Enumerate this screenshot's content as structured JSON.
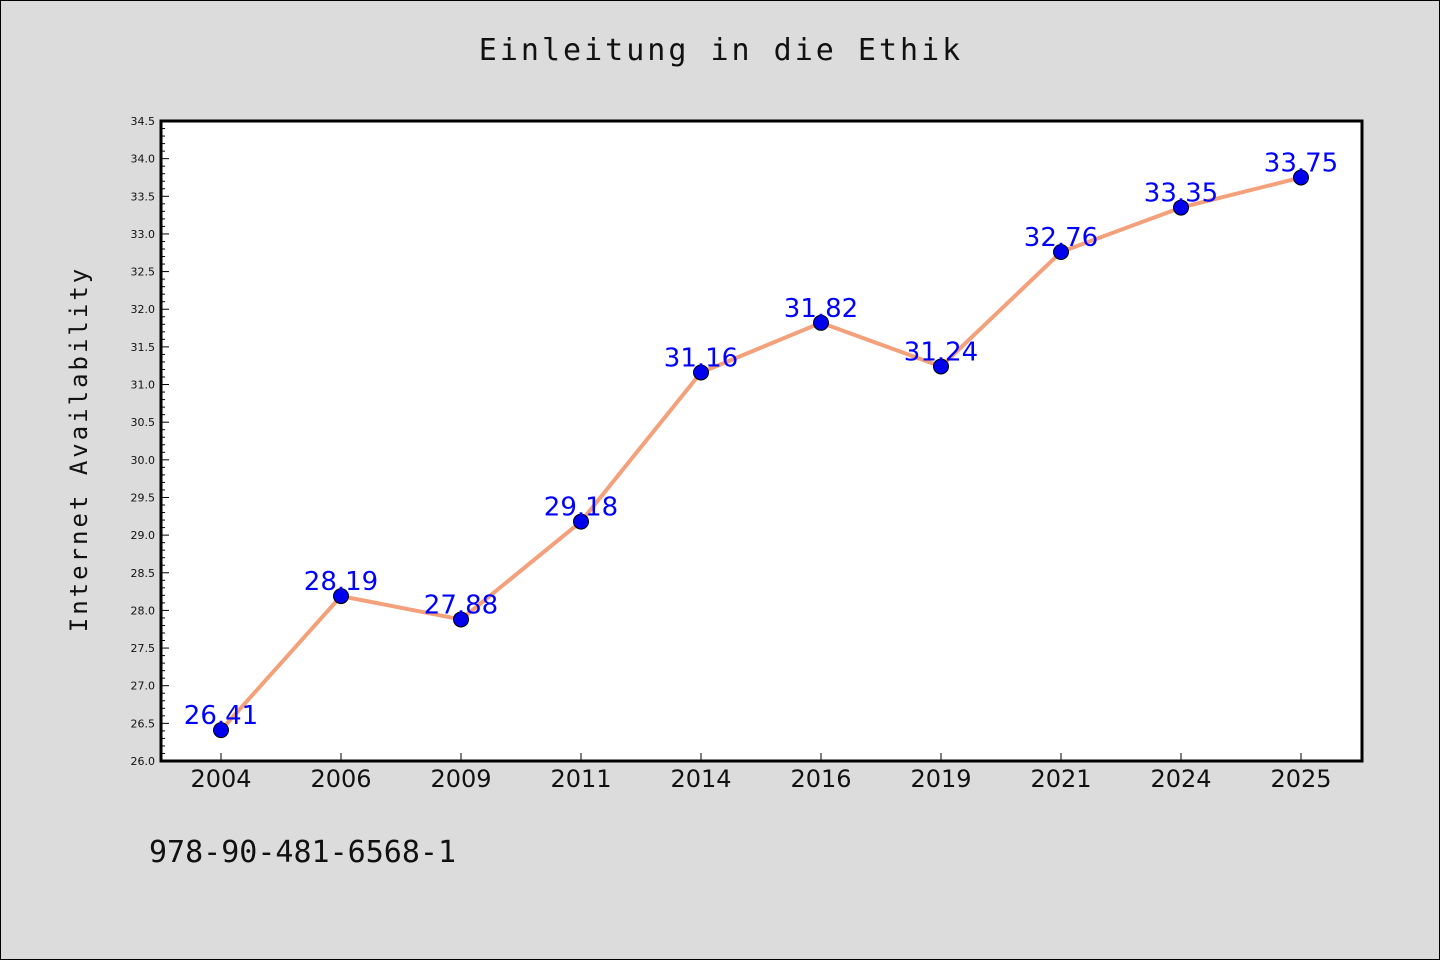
{
  "chart_data": {
    "type": "line",
    "title": "Einleitung in die Ethik",
    "ylabel": "Internet Availability",
    "xlabel": "",
    "categories": [
      "2004",
      "2006",
      "2009",
      "2011",
      "2014",
      "2016",
      "2019",
      "2021",
      "2024",
      "2025"
    ],
    "series": [
      {
        "values": [
          26.41,
          28.19,
          27.88,
          29.18,
          31.16,
          31.82,
          31.24,
          32.76,
          33.35,
          33.75
        ]
      }
    ],
    "data_labels": [
      "26.41",
      "28.19",
      "27.88",
      "29.18",
      "31.16",
      "31.82",
      "31.24",
      "32.76",
      "33.35",
      "33.75"
    ],
    "ylim": [
      26.0,
      34.5
    ],
    "yticks": [
      "26.0",
      "26.5",
      "27.0",
      "27.5",
      "28.0",
      "28.5",
      "29.0",
      "29.5",
      "30.0",
      "30.5",
      "31.0",
      "31.5",
      "32.0",
      "32.5",
      "33.0",
      "33.5",
      "34.0",
      "34.5"
    ],
    "grid": false,
    "legend": "none",
    "line_color": "#f4a07a",
    "marker_color": "#0000ee",
    "label_color": "#0000ff",
    "background_color": "#dcdcdc",
    "plot_background": "#ffffff"
  },
  "footer": {
    "isbn": "978-90-481-6568-1"
  }
}
